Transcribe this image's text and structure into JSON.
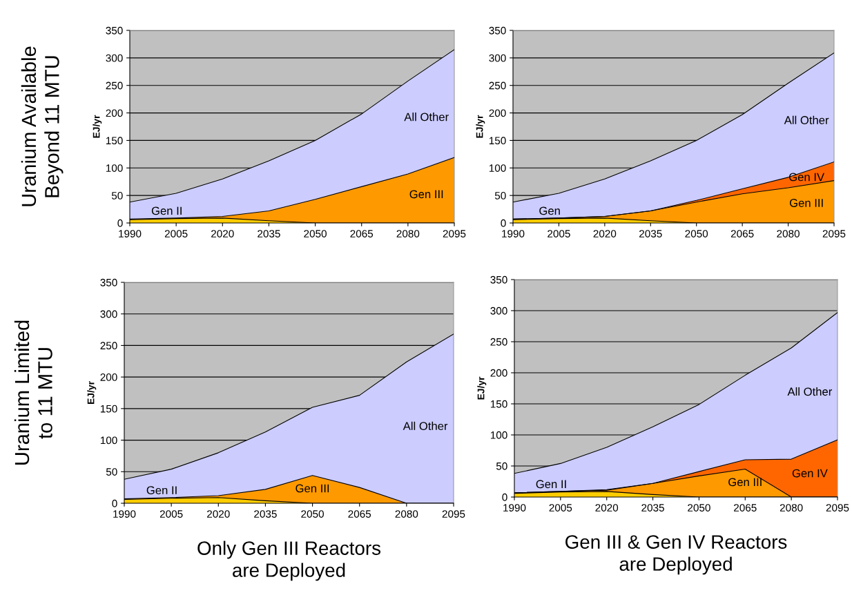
{
  "chart_data": [
    {
      "type": "area",
      "stacked": true,
      "ylabel": "EJ/yr",
      "annotations": [
        "Uranium Available\nBeyond 11 MTU"
      ],
      "categories": [
        "1990",
        "2005",
        "2020",
        "2035",
        "2050",
        "2065",
        "2080",
        "2095"
      ],
      "ylim": [
        0,
        350
      ],
      "yticks": [
        0,
        50,
        100,
        150,
        200,
        250,
        300,
        350
      ],
      "grid": "y",
      "series": [
        {
          "name": "Gen II",
          "color": "#ffcc00",
          "values": [
            6,
            8,
            9,
            4,
            0,
            0,
            0,
            0
          ]
        },
        {
          "name": "Gen III",
          "color": "#ff9900",
          "values": [
            1,
            1,
            3,
            18,
            43,
            66,
            89,
            119
          ]
        },
        {
          "name": "All Other",
          "color": "#ccccff",
          "values": [
            31,
            45,
            68,
            91,
            107,
            132,
            169,
            196
          ]
        }
      ]
    },
    {
      "type": "area",
      "stacked": true,
      "ylabel": "EJ/yr",
      "categories": [
        "1990",
        "2005",
        "2020",
        "2035",
        "2050",
        "2065",
        "2080",
        "2095"
      ],
      "ylim": [
        0,
        350
      ],
      "yticks": [
        0,
        50,
        100,
        150,
        200,
        250,
        300,
        350
      ],
      "grid": "y",
      "series": [
        {
          "name": "Gen",
          "color": "#ffcc00",
          "values": [
            6,
            8,
            9,
            4,
            0,
            0,
            0,
            0
          ]
        },
        {
          "name": "Gen III",
          "color": "#ff9900",
          "values": [
            1,
            1,
            3,
            18,
            38,
            53,
            64,
            77
          ]
        },
        {
          "name": "Gen IV",
          "color": "#ff6600",
          "values": [
            0,
            0,
            0,
            0,
            3,
            9,
            19,
            34
          ]
        },
        {
          "name": "All Other",
          "color": "#ccccff",
          "values": [
            31,
            45,
            68,
            91,
            109,
            135,
            171,
            198
          ]
        }
      ]
    },
    {
      "type": "area",
      "stacked": true,
      "ylabel": "EJ/yr",
      "xlabel": "Only Gen III Reactors\nare Deployed",
      "annotations": [
        "Uranium Limited\nto 11 MTU"
      ],
      "categories": [
        "1990",
        "2005",
        "2020",
        "2035",
        "2050",
        "2065",
        "2080",
        "2095"
      ],
      "ylim": [
        0,
        350
      ],
      "yticks": [
        0,
        50,
        100,
        150,
        200,
        250,
        300,
        350
      ],
      "grid": "y",
      "series": [
        {
          "name": "Gen II",
          "color": "#ffcc00",
          "values": [
            6,
            8,
            9,
            4,
            0,
            0,
            0,
            0
          ]
        },
        {
          "name": "Gen III",
          "color": "#ff9900",
          "values": [
            1,
            1,
            3,
            18,
            44,
            25,
            0,
            0
          ]
        },
        {
          "name": "All Other",
          "color": "#ccccff",
          "values": [
            31,
            45,
            68,
            91,
            108,
            146,
            224,
            268
          ]
        }
      ]
    },
    {
      "type": "area",
      "stacked": true,
      "ylabel": "EJ/yr",
      "xlabel": "Gen III & Gen IV Reactors\nare Deployed",
      "categories": [
        "1990",
        "2005",
        "2020",
        "2035",
        "2050",
        "2065",
        "2080",
        "2095"
      ],
      "ylim": [
        0,
        350
      ],
      "yticks": [
        0,
        50,
        100,
        150,
        200,
        250,
        300,
        350
      ],
      "grid": "y",
      "series": [
        {
          "name": "Gen II",
          "color": "#ffcc00",
          "values": [
            6,
            8,
            9,
            4,
            0,
            0,
            0,
            0
          ]
        },
        {
          "name": "Gen III",
          "color": "#ff9900",
          "values": [
            1,
            1,
            2,
            18,
            34,
            45,
            0,
            0
          ]
        },
        {
          "name": "Gen IV",
          "color": "#ff6600",
          "values": [
            0,
            0,
            1,
            0,
            7,
            15,
            61,
            92
          ]
        },
        {
          "name": "All Other",
          "color": "#ccccff",
          "values": [
            31,
            45,
            68,
            91,
            108,
            136,
            179,
            205
          ]
        }
      ]
    }
  ]
}
